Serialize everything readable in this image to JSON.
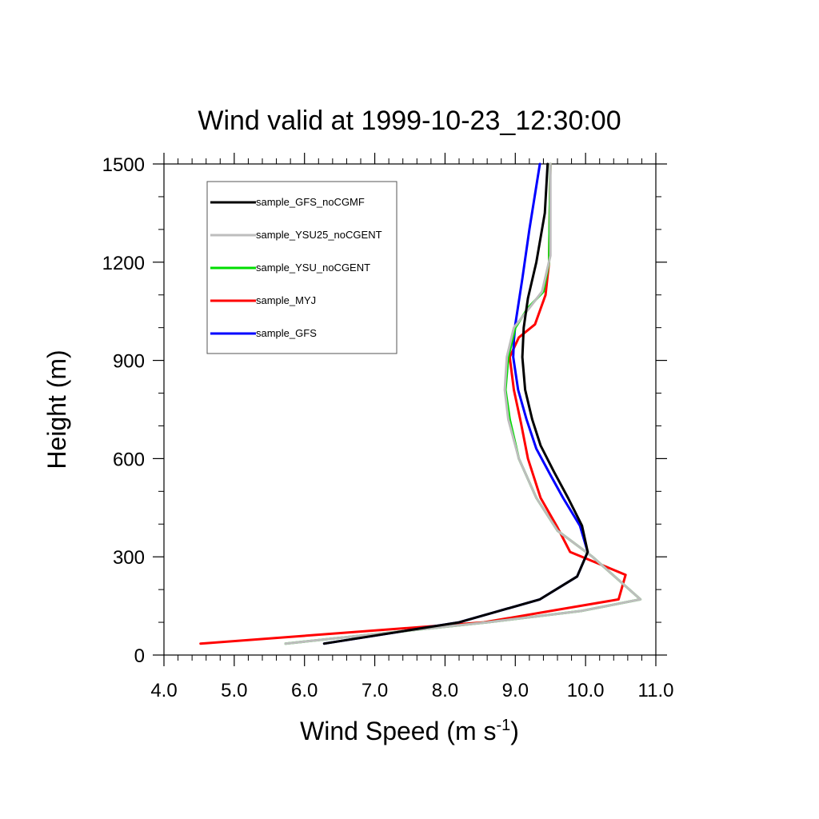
{
  "chart_data": {
    "type": "line",
    "title": "Wind valid at 1999-10-23_12:30:00",
    "xlabel": {
      "main": "Wind Speed (m s",
      "sup": "-1",
      "close": ")"
    },
    "ylabel": "Height (m)",
    "xlim": [
      4.0,
      11.0
    ],
    "ylim": [
      0,
      1500
    ],
    "xticks": [
      4.0,
      5.0,
      6.0,
      7.0,
      8.0,
      9.0,
      10.0,
      11.0
    ],
    "xtick_labels": [
      "4.0",
      "5.0",
      "6.0",
      "7.0",
      "8.0",
      "9.0",
      "10.0",
      "11.0"
    ],
    "yticks": [
      0,
      300,
      600,
      900,
      1200,
      1500
    ],
    "ytick_labels": [
      "0",
      "300",
      "600",
      "900",
      "1200",
      "1500"
    ],
    "grid": false,
    "legend_position": "top-left",
    "series": [
      {
        "name": "sample_GFS_noCGMF",
        "color": "#000000",
        "x": [
          6.28,
          8.2,
          9.35,
          9.88,
          10.03,
          9.95,
          9.75,
          9.55,
          9.36,
          9.24,
          9.14,
          9.1,
          9.12,
          9.18,
          9.3,
          9.42,
          9.46
        ],
        "y": [
          35,
          100,
          170,
          240,
          315,
          395,
          480,
          560,
          640,
          720,
          810,
          910,
          1000,
          1090,
          1200,
          1350,
          1500
        ]
      },
      {
        "name": "sample_YSU25_noCGENT",
        "color": "#bdbdbd",
        "x": [
          5.73,
          8.6,
          9.95,
          10.78,
          10.1,
          9.6,
          9.3,
          9.05,
          8.9,
          8.85,
          8.88,
          8.98,
          9.2,
          9.38,
          9.5,
          9.5
        ],
        "y": [
          35,
          100,
          135,
          170,
          300,
          380,
          480,
          600,
          720,
          810,
          910,
          1000,
          1060,
          1110,
          1220,
          1500
        ]
      },
      {
        "name": "sample_YSU_noCGENT",
        "color": "#00dd00",
        "x": [
          5.73,
          8.6,
          9.95,
          10.78,
          10.1,
          9.6,
          9.3,
          9.05,
          8.92,
          8.86,
          8.9,
          9.0,
          9.18,
          9.4,
          9.48,
          9.5
        ],
        "y": [
          35,
          100,
          135,
          170,
          300,
          380,
          480,
          600,
          720,
          810,
          910,
          1000,
          1060,
          1110,
          1200,
          1500
        ]
      },
      {
        "name": "sample_MYJ",
        "color": "#ff0000",
        "x": [
          4.52,
          8.55,
          10.47,
          10.57,
          9.78,
          9.6,
          9.36,
          9.18,
          9.08,
          8.98,
          8.92,
          9.05,
          9.28,
          9.43,
          9.48,
          9.5
        ],
        "y": [
          35,
          100,
          170,
          245,
          315,
          390,
          480,
          600,
          710,
          810,
          910,
          970,
          1010,
          1100,
          1200,
          1500
        ]
      },
      {
        "name": "sample_GFS",
        "color": "#0000ff",
        "x": [
          6.28,
          8.2,
          9.35,
          9.88,
          10.03,
          9.92,
          9.68,
          9.5,
          9.3,
          9.16,
          9.04,
          8.97,
          8.98,
          9.0,
          9.1,
          9.2,
          9.35
        ],
        "y": [
          35,
          100,
          170,
          240,
          315,
          395,
          480,
          550,
          630,
          720,
          810,
          910,
          960,
          1010,
          1150,
          1300,
          1500
        ]
      }
    ]
  }
}
